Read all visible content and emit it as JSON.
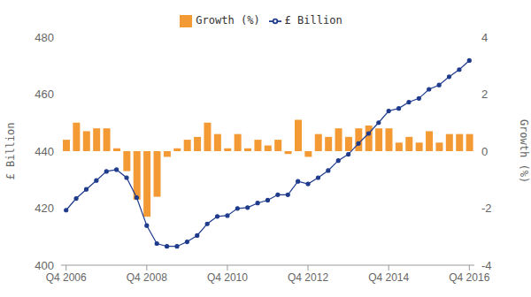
{
  "chart_data": {
    "type": "combo",
    "categories": [
      "Q4 2006",
      null,
      null,
      null,
      null,
      null,
      null,
      null,
      "Q4 2008",
      null,
      null,
      null,
      null,
      null,
      null,
      null,
      "Q4 2010",
      null,
      null,
      null,
      null,
      null,
      null,
      null,
      "Q4 2012",
      null,
      null,
      null,
      null,
      null,
      null,
      null,
      "Q4 2014",
      null,
      null,
      null,
      null,
      null,
      null,
      null,
      "Q4 2016"
    ],
    "series": [
      {
        "name": "£ Billion",
        "type": "line",
        "color": "#1f3b8c",
        "marker": "circle",
        "values": [
          419.3,
          423.4,
          426.6,
          429.7,
          432.9,
          433.5,
          430.7,
          423.7,
          413.9,
          407.6,
          406.6,
          406.6,
          408.2,
          410.4,
          414.5,
          417.1,
          417.4,
          419.9,
          420.2,
          421.8,
          422.8,
          424.7,
          424.7,
          429.4,
          428.5,
          430.7,
          433.2,
          436.7,
          438.9,
          442.7,
          446.2,
          450.0,
          454.1,
          455.0,
          457.2,
          458.5,
          461.7,
          463.2,
          466.1,
          468.6,
          471.8
        ]
      },
      {
        "name": "Growth (%)",
        "type": "bar",
        "color": "#f39a34",
        "axis": "y2",
        "values": [
          0.4,
          1.0,
          0.7,
          0.8,
          0.8,
          0.1,
          -0.7,
          -1.7,
          -2.3,
          -1.6,
          -0.2,
          0.1,
          0.4,
          0.5,
          1.0,
          0.6,
          0.1,
          0.6,
          0.1,
          0.4,
          0.2,
          0.4,
          -0.1,
          1.1,
          -0.2,
          0.6,
          0.5,
          0.8,
          0.5,
          0.8,
          0.9,
          0.8,
          0.8,
          0.3,
          0.5,
          0.3,
          0.7,
          0.3,
          0.6,
          0.6,
          0.6
        ]
      }
    ],
    "ylabel": "£ Billion",
    "y2label": "Growth (%)",
    "ylim": [
      400,
      480
    ],
    "yticks": [
      400,
      420,
      440,
      460,
      480
    ],
    "y2lim": [
      -4,
      4
    ],
    "y2ticks": [
      -4,
      -2,
      0,
      2,
      4
    ],
    "legend": "top",
    "grid": false
  }
}
